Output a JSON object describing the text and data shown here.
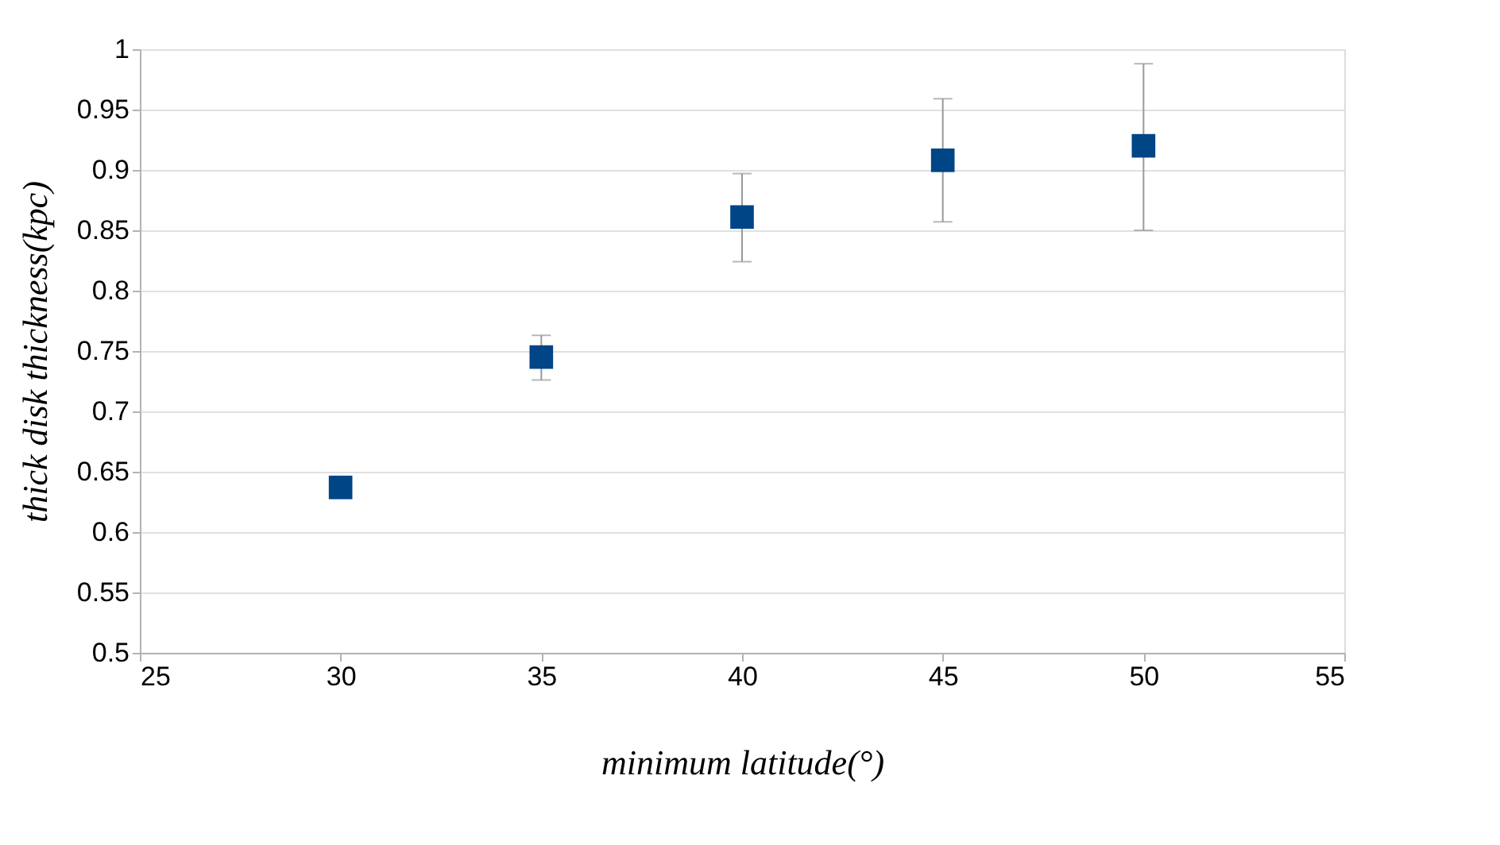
{
  "chart_data": {
    "type": "scatter",
    "xlabel": "minimum latitude(°)",
    "ylabel": "thick disk thickness(kpc)",
    "x": [
      30,
      35,
      40,
      45,
      50
    ],
    "series": [
      {
        "color": "#004586",
        "values": [
          0.637,
          0.745,
          0.861,
          0.908,
          0.92
        ],
        "errors": [
          null,
          [
            0.726,
            0.763
          ],
          [
            0.824,
            0.897
          ],
          [
            0.857,
            0.959
          ],
          [
            0.85,
            0.988
          ]
        ]
      }
    ],
    "xlim": [
      25,
      55
    ],
    "xticks": [
      25,
      30,
      35,
      40,
      45,
      50,
      55
    ],
    "ylim": [
      0.5,
      1
    ],
    "yticks": [
      0.5,
      0.55,
      0.6,
      0.65,
      0.7,
      0.75,
      0.8,
      0.85,
      0.9,
      0.95,
      1
    ],
    "grid": "y",
    "marker": "square"
  }
}
